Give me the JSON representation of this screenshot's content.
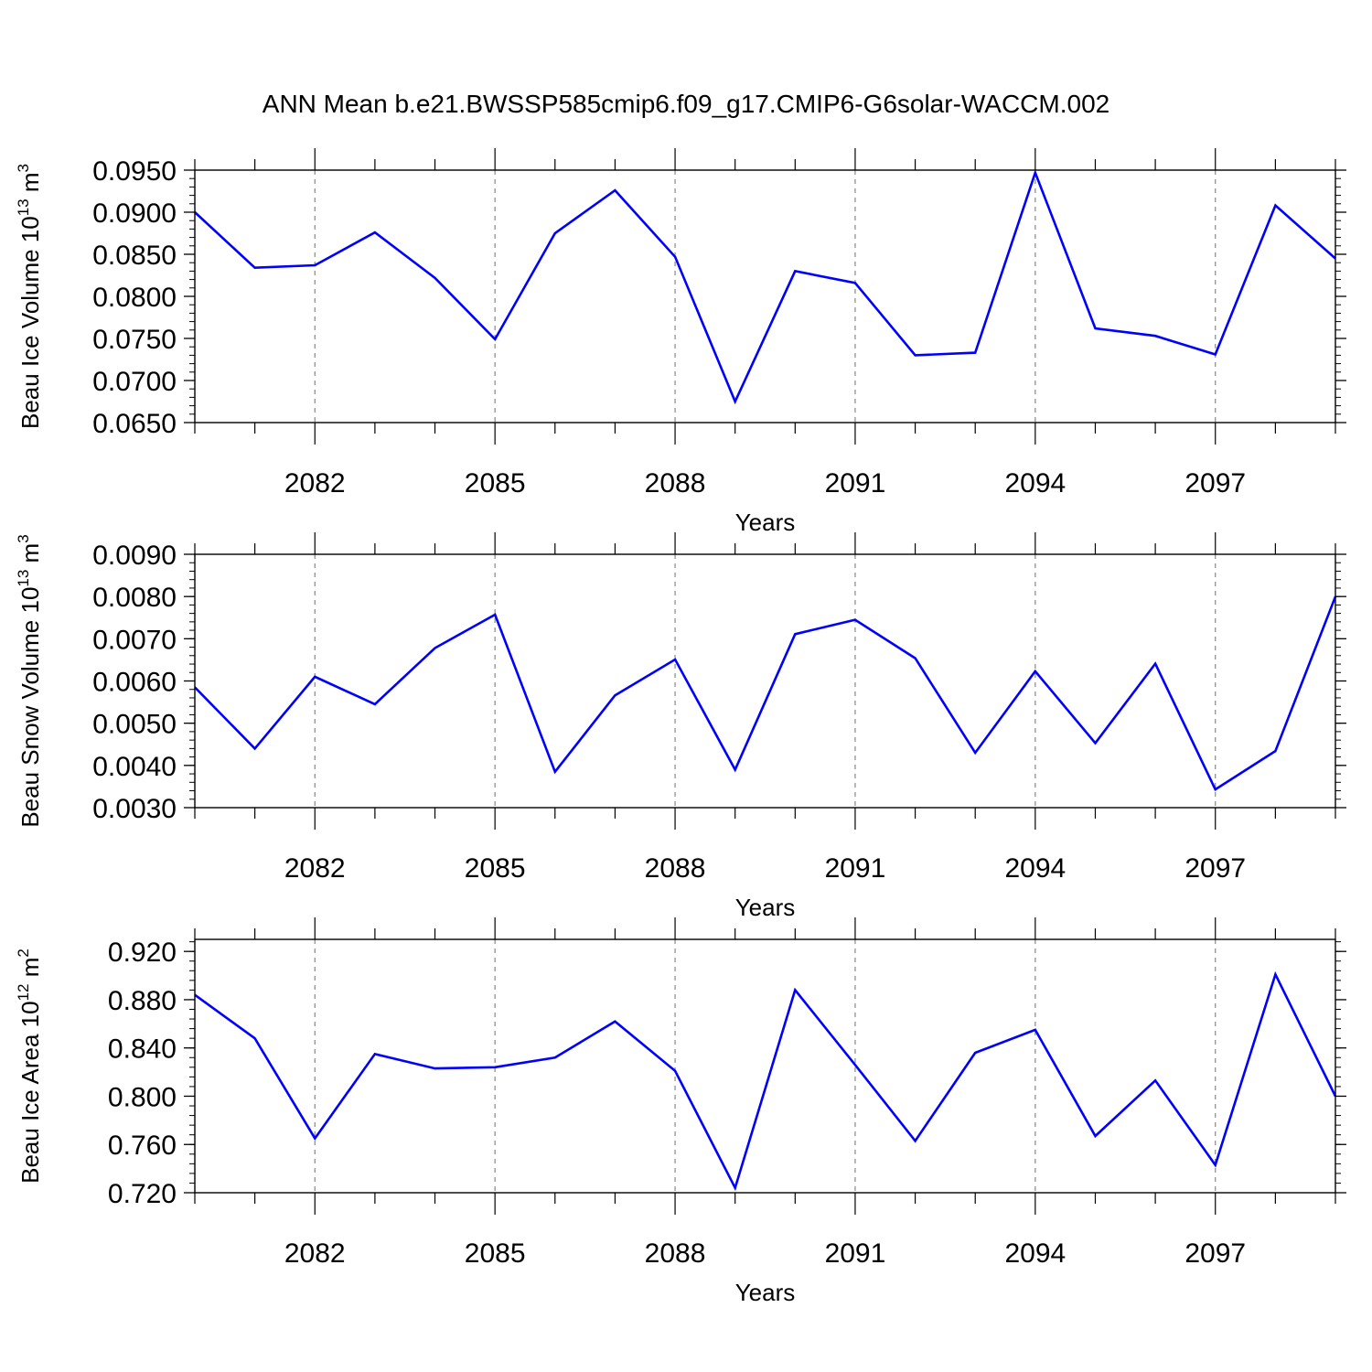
{
  "figure_title": "ANN Mean b.e21.BWSSP585cmip6.f09_g17.CMIP6-G6solar-WACCM.002",
  "colors": {
    "line": "#0000ff",
    "axes": "#000000",
    "grid": "#888888"
  },
  "chart_data": [
    {
      "type": "line",
      "ylabel_text": "Beau Ice Volume 10",
      "ylabel_exp": "13",
      "ylabel_unit": " m",
      "ylabel_unit_exp": "3",
      "xlabel": "Years",
      "x": [
        2080,
        2081,
        2082,
        2083,
        2084,
        2085,
        2086,
        2087,
        2088,
        2089,
        2090,
        2091,
        2092,
        2093,
        2094,
        2095,
        2096,
        2097,
        2098,
        2099
      ],
      "series": [
        {
          "values": [
            0.09,
            0.0834,
            0.0837,
            0.0876,
            0.0822,
            0.0749,
            0.0875,
            0.0926,
            0.0847,
            0.0675,
            0.083,
            0.0816,
            0.073,
            0.0733,
            0.0947,
            0.0762,
            0.0753,
            0.0731,
            0.0908,
            0.0845
          ]
        }
      ],
      "xlim": [
        2080,
        2099
      ],
      "ylim": [
        0.065,
        0.095
      ],
      "xticks": [
        2082,
        2085,
        2088,
        2091,
        2094,
        2097
      ],
      "xtick_labels": [
        "2082",
        "2085",
        "2088",
        "2091",
        "2094",
        "2097"
      ],
      "yticks": [
        0.065,
        0.07,
        0.075,
        0.08,
        0.085,
        0.09,
        0.095
      ],
      "ytick_labels": [
        "0.0650",
        "0.0700",
        "0.0750",
        "0.0800",
        "0.0850",
        "0.0900",
        "0.0950"
      ],
      "grid": "vertical dashed at labeled x ticks"
    },
    {
      "type": "line",
      "ylabel_text": "Beau Snow Volume 10",
      "ylabel_exp": "13",
      "ylabel_unit": " m",
      "ylabel_unit_exp": "3",
      "xlabel": "Years",
      "x": [
        2080,
        2081,
        2082,
        2083,
        2084,
        2085,
        2086,
        2087,
        2088,
        2089,
        2090,
        2091,
        2092,
        2093,
        2094,
        2095,
        2096,
        2097,
        2098,
        2099
      ],
      "series": [
        {
          "values": [
            0.00585,
            0.0044,
            0.0061,
            0.00545,
            0.00678,
            0.00757,
            0.00385,
            0.00566,
            0.00651,
            0.0039,
            0.00711,
            0.00745,
            0.00654,
            0.0043,
            0.00623,
            0.00453,
            0.00641,
            0.00343,
            0.00434,
            0.008
          ]
        }
      ],
      "xlim": [
        2080,
        2099
      ],
      "ylim": [
        0.003,
        0.009
      ],
      "xticks": [
        2082,
        2085,
        2088,
        2091,
        2094,
        2097
      ],
      "xtick_labels": [
        "2082",
        "2085",
        "2088",
        "2091",
        "2094",
        "2097"
      ],
      "yticks": [
        0.003,
        0.004,
        0.005,
        0.006,
        0.007,
        0.008,
        0.009
      ],
      "ytick_labels": [
        "0.0030",
        "0.0040",
        "0.0050",
        "0.0060",
        "0.0070",
        "0.0080",
        "0.0090"
      ],
      "grid": "vertical dashed at labeled x ticks"
    },
    {
      "type": "line",
      "ylabel_text": "Beau Ice Area 10",
      "ylabel_exp": "12",
      "ylabel_unit": " m",
      "ylabel_unit_exp": "2",
      "xlabel": "Years",
      "x": [
        2080,
        2081,
        2082,
        2083,
        2084,
        2085,
        2086,
        2087,
        2088,
        2089,
        2090,
        2091,
        2092,
        2093,
        2094,
        2095,
        2096,
        2097,
        2098,
        2099
      ],
      "series": [
        {
          "values": [
            0.884,
            0.848,
            0.765,
            0.835,
            0.823,
            0.824,
            0.832,
            0.862,
            0.821,
            0.724,
            0.888,
            0.826,
            0.763,
            0.836,
            0.855,
            0.767,
            0.813,
            0.743,
            0.901,
            0.8
          ]
        }
      ],
      "xlim": [
        2080,
        2099
      ],
      "ylim": [
        0.72,
        0.93
      ],
      "xticks": [
        2082,
        2085,
        2088,
        2091,
        2094,
        2097
      ],
      "xtick_labels": [
        "2082",
        "2085",
        "2088",
        "2091",
        "2094",
        "2097"
      ],
      "yticks": [
        0.72,
        0.76,
        0.8,
        0.84,
        0.88,
        0.92
      ],
      "ytick_labels": [
        "0.720",
        "0.760",
        "0.800",
        "0.840",
        "0.880",
        "0.920"
      ],
      "grid": "vertical dashed at labeled x ticks"
    }
  ]
}
